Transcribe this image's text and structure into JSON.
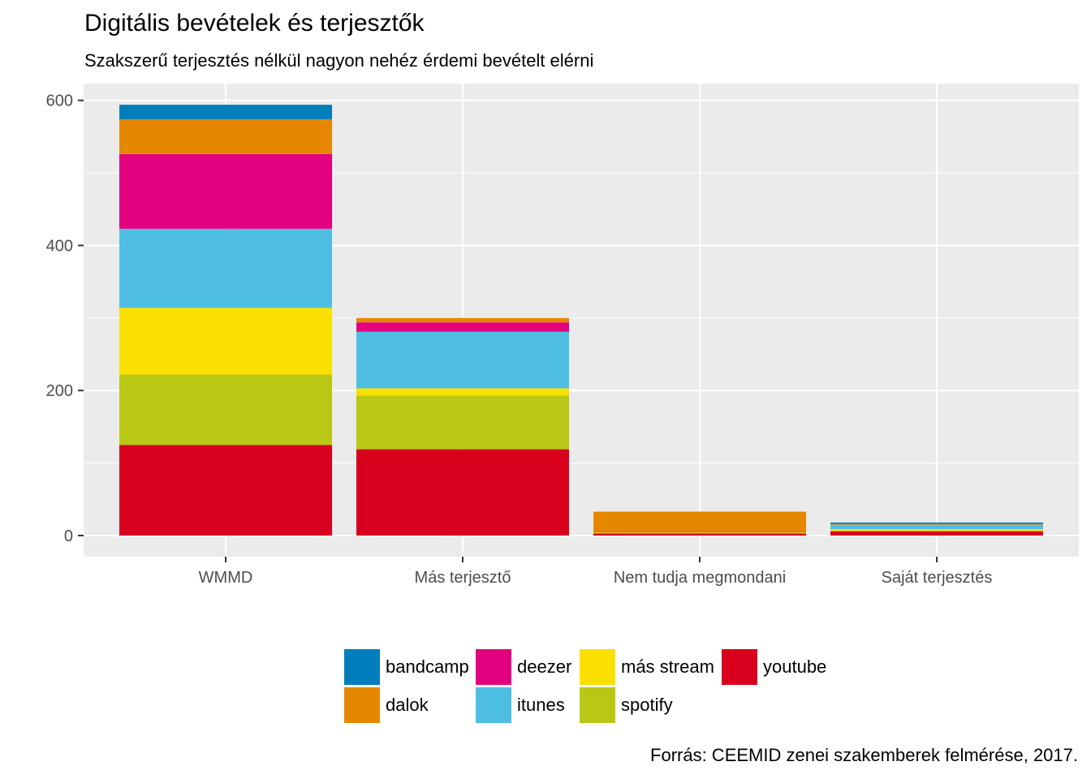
{
  "chart_data": {
    "type": "bar",
    "stacked": true,
    "title": "Digitális bevételek és terjesztők",
    "subtitle": "Szakszerű terjesztés nélkül nagyon nehéz érdemi bevételt elérni",
    "caption": "Forrás: CEEMID zenei szakemberek felmérése, 2017.",
    "xlabel": "",
    "ylabel": "",
    "ylim": [
      0,
      620
    ],
    "yticks": [
      0,
      200,
      400,
      600
    ],
    "ytick_labels": [
      "0",
      "200",
      "400",
      "600"
    ],
    "grid": true,
    "legend_position": "bottom",
    "categories": [
      "WMMD",
      "Más terjesztő",
      "Nem tudja megmondani",
      "Saját terjesztés"
    ],
    "stack_order_bottom_to_top": [
      "youtube",
      "spotify",
      "más stream",
      "itunes",
      "deezer",
      "dalok",
      "bandcamp"
    ],
    "series": [
      {
        "name": "bandcamp",
        "color": "#007DBB",
        "values": [
          20,
          0,
          0,
          2
        ]
      },
      {
        "name": "dalok",
        "color": "#E68700",
        "values": [
          48,
          6,
          27,
          1
        ]
      },
      {
        "name": "deezer",
        "color": "#E3007E",
        "values": [
          103,
          13,
          1,
          0
        ]
      },
      {
        "name": "itunes",
        "color": "#4EBFE3",
        "values": [
          109,
          78,
          0,
          6
        ]
      },
      {
        "name": "más stream",
        "color": "#F9E000",
        "values": [
          92,
          10,
          1,
          2.5
        ]
      },
      {
        "name": "spotify",
        "color": "#B9C715",
        "values": [
          97,
          74,
          1,
          0.5
        ]
      },
      {
        "name": "youtube",
        "color": "#D9001E",
        "values": [
          125,
          119,
          3,
          6
        ]
      }
    ]
  },
  "legend": {
    "items": [
      "bandcamp",
      "dalok",
      "deezer",
      "itunes",
      "más stream",
      "spotify",
      "youtube"
    ]
  }
}
